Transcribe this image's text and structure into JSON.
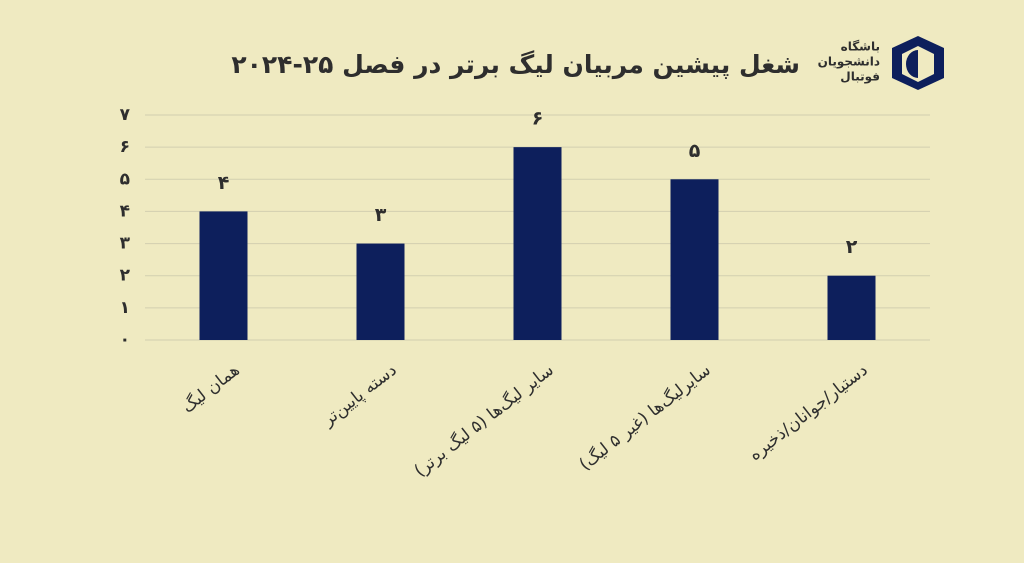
{
  "chart_data": {
    "type": "bar",
    "title": "شغل پیشین مربیان لیگ برتر در فصل ۲۵-۲۰۲۴",
    "categories": [
      "همان لیگ",
      "دسته پایین‌تر",
      "سایر لیگ‌ها (۵ لیگ برتر)",
      "سایرلیگ‌ها (غیر ۵ لیگ)",
      "دستیار/جوانان/ذخیره"
    ],
    "values": [
      4,
      3,
      6,
      5,
      2
    ],
    "value_labels": [
      "۴",
      "۳",
      "۶",
      "۵",
      "۲"
    ],
    "color": "#0d1f5c",
    "ylim": [
      0,
      7
    ],
    "yticks": [
      {
        "value": 0,
        "label": "۰"
      },
      {
        "value": 1,
        "label": "۱"
      },
      {
        "value": 2,
        "label": "۲"
      },
      {
        "value": 3,
        "label": "۳"
      },
      {
        "value": 4,
        "label": "۴"
      },
      {
        "value": 5,
        "label": "۵"
      },
      {
        "value": 6,
        "label": "۶"
      },
      {
        "value": 7,
        "label": "۷"
      }
    ],
    "grid": true
  },
  "logo": {
    "lines": [
      "باشگاه",
      "دانشجویان",
      "فوتبال"
    ]
  }
}
